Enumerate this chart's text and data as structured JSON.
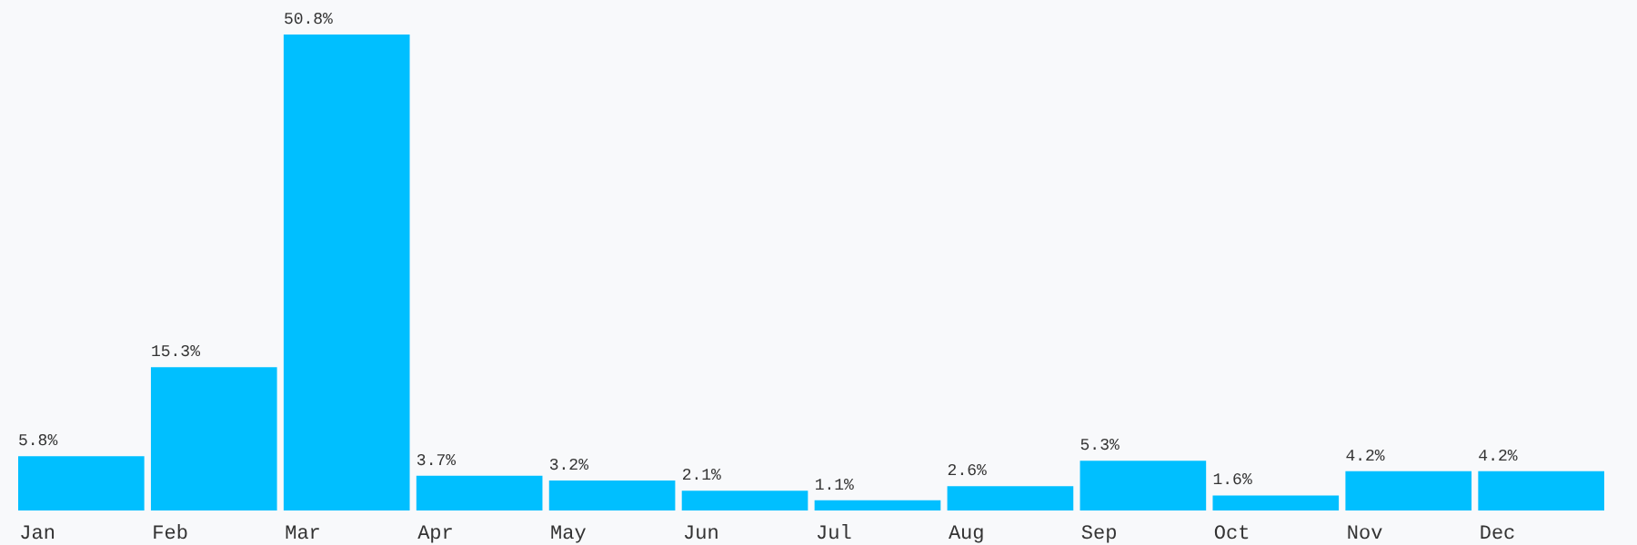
{
  "chart_data": {
    "type": "bar",
    "categories": [
      "Jan",
      "Feb",
      "Mar",
      "Apr",
      "May",
      "Jun",
      "Jul",
      "Aug",
      "Sep",
      "Oct",
      "Nov",
      "Dec"
    ],
    "values": [
      5.8,
      15.3,
      50.8,
      3.7,
      3.2,
      2.1,
      1.1,
      2.6,
      5.3,
      1.6,
      4.2,
      4.2
    ],
    "value_labels": [
      "5.8%",
      "15.3%",
      "50.8%",
      "3.7%",
      "3.2%",
      "2.1%",
      "1.1%",
      "2.6%",
      "5.3%",
      "1.6%",
      "4.2%",
      "4.2%"
    ],
    "color": "#00bfff"
  }
}
